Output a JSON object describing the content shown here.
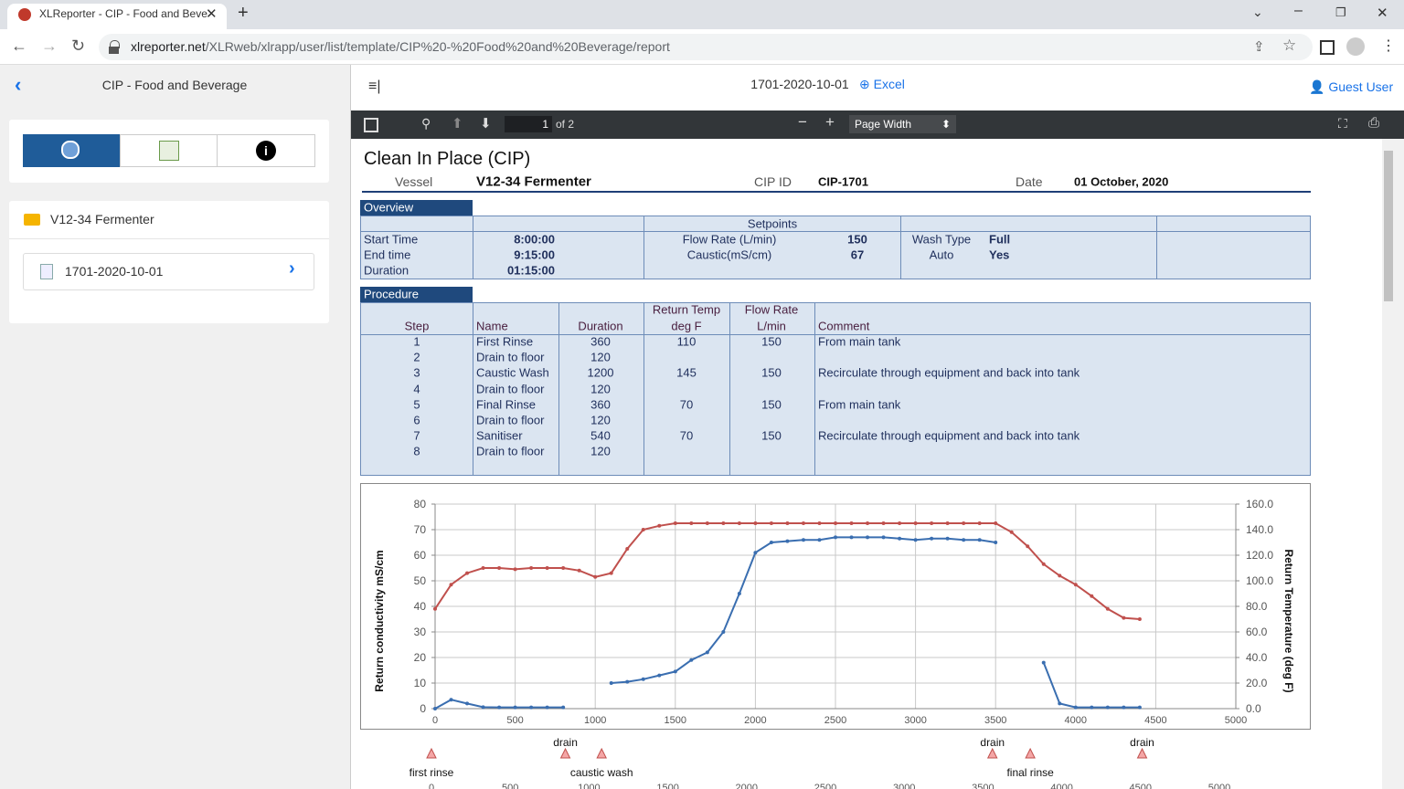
{
  "browser": {
    "tab_title": "XLReporter - CIP - Food and Beve",
    "url_host": "xlreporter.net",
    "url_path": "/XLRweb/xlrapp/user/list/template/CIP%20-%20Food%20and%20Beverage/report"
  },
  "app": {
    "back_title": "CIP - Food and Beverage",
    "report_name": "1701-2020-10-01",
    "export": "Excel",
    "user": "Guest User"
  },
  "sidebar": {
    "folder": "V12-34 Fermenter",
    "item": "1701-2020-10-01"
  },
  "viewer": {
    "page": "1",
    "page_count": "of 2",
    "zoom": "Page Width"
  },
  "report": {
    "title": "Clean In Place (CIP)",
    "header": [
      [
        "Vessel",
        "V12-34 Fermenter"
      ],
      [
        "CIP ID",
        "CIP-1701"
      ],
      [
        "Date",
        "01 October, 2020"
      ]
    ],
    "overview": {
      "label": "Overview",
      "setpoints": "Setpoints",
      "rows": [
        [
          "Start Time",
          "8:00:00",
          "Flow Rate (L/min)",
          "150",
          "Wash Type",
          "Full"
        ],
        [
          "End time",
          "9:15:00",
          "Caustic(mS/cm)",
          "67",
          "Auto",
          "Yes"
        ],
        [
          "Duration",
          "01:15:00"
        ]
      ]
    },
    "procedure": {
      "label": "Procedure",
      "header_top": [
        null,
        null,
        null,
        "Return Temp",
        "Flow Rate",
        null
      ],
      "header": [
        "Step",
        "Name",
        "Duration",
        "deg F",
        "L/min",
        "Comment"
      ],
      "rows": [
        [
          "1",
          "First Rinse",
          "360",
          "110",
          "150",
          "From main tank"
        ],
        [
          "2",
          "Drain to floor",
          "120",
          null,
          null,
          null
        ],
        [
          "3",
          "Caustic Wash",
          "1200",
          "145",
          "150",
          "Recirculate through equipment and back into tank"
        ],
        [
          "4",
          "Drain to floor",
          "120",
          null,
          null,
          null
        ],
        [
          "5",
          "Final Rinse",
          "360",
          "70",
          "150",
          "From main tank"
        ],
        [
          "6",
          "Drain to floor",
          "120",
          null,
          null,
          null
        ],
        [
          "7",
          "Sanitiser",
          "540",
          "70",
          "150",
          "Recirculate through equipment and back into tank"
        ],
        [
          "8",
          "Drain to floor",
          "120",
          null,
          null,
          null
        ]
      ]
    }
  },
  "chart_data": {
    "type": "line",
    "y_label": "Return conductivity  mS/cm",
    "y2_label": "Return Temperature (deg F)",
    "grid": true,
    "x": [
      0,
      100,
      200,
      300,
      400,
      500,
      600,
      700,
      800,
      900,
      1000,
      1100,
      1200,
      1300,
      1400,
      1500,
      1600,
      1700,
      1800,
      1900,
      2000,
      2100,
      2200,
      2300,
      2400,
      2500,
      2600,
      2700,
      2800,
      2900,
      3000,
      3100,
      3200,
      3300,
      3400,
      3500,
      3600,
      3700,
      3800,
      3900,
      4000,
      4100,
      4200,
      4300,
      4400,
      4500
    ],
    "series": [
      {
        "color": "#3a6eb0",
        "values": [
          0,
          3.5,
          2,
          0.6,
          0.5,
          0.5,
          0.5,
          0.5,
          0.5,
          null,
          null,
          10,
          10.5,
          11.5,
          13,
          14.5,
          19,
          22,
          30,
          45,
          61,
          65,
          65.5,
          66,
          66,
          67,
          67,
          67,
          67,
          66.5,
          66,
          66.5,
          66.5,
          66,
          66,
          65,
          null,
          null,
          18,
          2,
          0.5,
          0.5,
          0.5,
          0.5,
          0.5,
          null
        ]
      },
      {
        "color": "#c0504d",
        "axis": "y2",
        "values": [
          78,
          97,
          106,
          110,
          110,
          109,
          110,
          110,
          110,
          108,
          103,
          106,
          125,
          140,
          143,
          145,
          145,
          145,
          145,
          145,
          145,
          145,
          145,
          145,
          145,
          145,
          145,
          145,
          145,
          145,
          145,
          145,
          145,
          145,
          145,
          145,
          138,
          127,
          113,
          104,
          97,
          88,
          78,
          71,
          70,
          null
        ]
      }
    ],
    "xlim": [
      0,
      5000
    ],
    "xticks": [
      0,
      500,
      1000,
      1500,
      2000,
      2500,
      3000,
      3500,
      4000,
      4500,
      5000
    ],
    "ylim": [
      0,
      80
    ],
    "yticks": [
      0,
      10,
      20,
      30,
      40,
      50,
      60,
      70,
      80
    ],
    "y2lim": [
      0,
      160
    ],
    "y2ticks": [
      {
        "value": 0,
        "label": "0.0"
      },
      {
        "value": 20,
        "label": "20.0"
      },
      {
        "value": 40,
        "label": "40.0"
      },
      {
        "value": 60,
        "label": "60.0"
      },
      {
        "value": 80,
        "label": "80.0"
      },
      {
        "value": 100,
        "label": "100.0"
      },
      {
        "value": 120,
        "label": "120.0"
      },
      {
        "value": 140,
        "label": "140.0"
      },
      {
        "value": 160,
        "label": "160.0"
      }
    ],
    "events": [
      {
        "label": "first rinse",
        "x": 0
      },
      {
        "label": "drain",
        "x": 850
      },
      {
        "label": "caustic wash",
        "x": 1080
      },
      {
        "label": "drain",
        "x": 3560
      },
      {
        "label": "final rinse",
        "x": 3800
      },
      {
        "label": "drain",
        "x": 4510
      }
    ]
  }
}
